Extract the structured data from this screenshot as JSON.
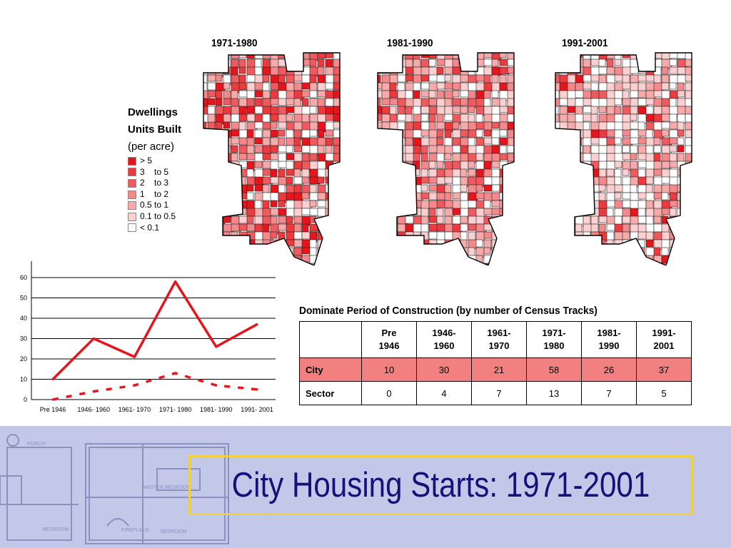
{
  "maps": {
    "titles": [
      "1971-1980",
      "1981-1990",
      "1991-2001"
    ]
  },
  "legend": {
    "title_line1": "Dwellings",
    "title_line2": "Units Built",
    "title_line3": "(per acre)",
    "items": [
      {
        "label": "> 5",
        "color": "#e8141c"
      },
      {
        "label": "3    to 5",
        "color": "#ec3a3e"
      },
      {
        "label": "2    to 3",
        "color": "#f05a5e"
      },
      {
        "label": "1    to 2",
        "color": "#f4888a"
      },
      {
        "label": "0.5 to 1",
        "color": "#f7aaaa"
      },
      {
        "label": "0.1 to 0.5",
        "color": "#fbd0d0"
      },
      {
        "label": "< 0.1",
        "color": "#ffffff"
      }
    ]
  },
  "chart_data": {
    "type": "line",
    "categories": [
      "Pre 1946",
      "1946- 1960",
      "1961- 1970",
      "1971- 1980",
      "1981- 1990",
      "1991- 2001"
    ],
    "series": [
      {
        "name": "City",
        "values": [
          10,
          30,
          21,
          58,
          26,
          37
        ],
        "color": "#e8141c",
        "style": "solid"
      },
      {
        "name": "Sector",
        "values": [
          0,
          4,
          7,
          13,
          7,
          5
        ],
        "color": "#e8141c",
        "style": "dashed"
      }
    ],
    "yticks": [
      0,
      10,
      20,
      30,
      40,
      50,
      60
    ],
    "ylim": [
      0,
      60
    ],
    "grid": true,
    "legend": "none"
  },
  "table": {
    "title": "Dominate Period of Construction (by number of Census Tracks)",
    "headers": [
      [
        "Pre",
        "1946"
      ],
      [
        "1946-",
        "1960"
      ],
      [
        "1961-",
        "1970"
      ],
      [
        "1971-",
        "1980"
      ],
      [
        "1981-",
        "1990"
      ],
      [
        "1991-",
        "2001"
      ]
    ],
    "rows": [
      {
        "label": "City",
        "values": [
          "10",
          "30",
          "21",
          "58",
          "26",
          "37"
        ]
      },
      {
        "label": "Sector",
        "values": [
          "0",
          "4",
          "7",
          "13",
          "7",
          "5"
        ]
      }
    ]
  },
  "slide_title": "City Housing Starts: 1971-2001",
  "colors": {
    "accent": "#f0d040",
    "title": "#14127a",
    "banner": "#c3c8e8"
  }
}
